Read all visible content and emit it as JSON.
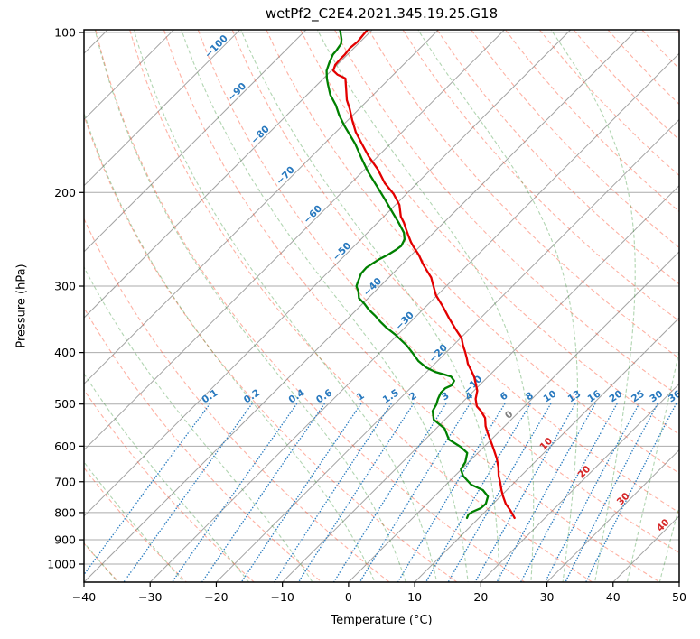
{
  "title": "wetPf2_C2E4.2021.345.19.25.G18",
  "axes": {
    "xlabel": "Temperature (°C)",
    "ylabel": "Pressure (hPa)"
  },
  "chart_data": {
    "type": "line",
    "subtype": "skew-t-log-p-sounding",
    "title": "wetPf2_C2E4.2021.345.19.25.G18",
    "xlabel": "Temperature (°C)",
    "ylabel": "Pressure (hPa)",
    "x_range_c": [
      -40,
      50
    ],
    "x_ticks": [
      -40,
      -30,
      -20,
      -10,
      0,
      10,
      20,
      30,
      40,
      50
    ],
    "y_ticks_hpa": [
      100,
      200,
      300,
      400,
      500,
      600,
      700,
      800,
      900,
      1000
    ],
    "grid_pressures": [
      100,
      200,
      300,
      400,
      500,
      600,
      700,
      800,
      900,
      1000
    ],
    "skew_deg": 45,
    "colors": {
      "temperature": "#e30000",
      "dewpoint": "#008000",
      "isotherm": "#a3a3a3",
      "gridline": "#ababab",
      "dry_adiabat": "rgba(252,70,35,0.42)",
      "moist_adiabat": "rgba(18,128,18,0.33)",
      "mixing_ratio": "#2f7fc1",
      "label_blue": "#2778be",
      "label_zero": "#7f7f7f",
      "label_red": "#d62728",
      "axis": "#000000"
    },
    "series": [
      {
        "name": "temperature",
        "legend": "temperature profile (red)",
        "units": {
          "x": "degC",
          "y": "hPa"
        },
        "points_p_t": [
          [
            99,
            -80.7
          ],
          [
            101,
            -80.6
          ],
          [
            104,
            -80.4
          ],
          [
            107,
            -80.6
          ],
          [
            110,
            -80.4
          ],
          [
            112,
            -80.4
          ],
          [
            115,
            -80.3
          ],
          [
            118,
            -79.7
          ],
          [
            120,
            -78.5
          ],
          [
            122,
            -76.7
          ],
          [
            127,
            -75.2
          ],
          [
            134,
            -73.2
          ],
          [
            139,
            -71.5
          ],
          [
            146,
            -69.4
          ],
          [
            154,
            -67.0
          ],
          [
            162,
            -64.3
          ],
          [
            171,
            -61.4
          ],
          [
            181,
            -58.0
          ],
          [
            192,
            -54.9
          ],
          [
            201,
            -52.0
          ],
          [
            211,
            -49.4
          ],
          [
            222,
            -47.4
          ],
          [
            228,
            -46.0
          ],
          [
            234,
            -44.8
          ],
          [
            240,
            -43.6
          ],
          [
            248,
            -42.0
          ],
          [
            254,
            -40.7
          ],
          [
            262,
            -38.9
          ],
          [
            272,
            -37.0
          ],
          [
            281,
            -35.2
          ],
          [
            289,
            -33.6
          ],
          [
            297,
            -32.4
          ],
          [
            312,
            -30.2
          ],
          [
            328,
            -27.4
          ],
          [
            345,
            -24.7
          ],
          [
            362,
            -22.0
          ],
          [
            376,
            -19.8
          ],
          [
            387,
            -18.6
          ],
          [
            399,
            -17.2
          ],
          [
            410,
            -16.0
          ],
          [
            420,
            -15.0
          ],
          [
            432,
            -13.5
          ],
          [
            445,
            -12.0
          ],
          [
            461,
            -10.5
          ],
          [
            472,
            -9.5
          ],
          [
            489,
            -8.5
          ],
          [
            505,
            -7.2
          ],
          [
            515,
            -5.9
          ],
          [
            531,
            -4.2
          ],
          [
            550,
            -2.9
          ],
          [
            567,
            -1.5
          ],
          [
            595,
            0.8
          ],
          [
            609,
            1.9
          ],
          [
            633,
            3.7
          ],
          [
            658,
            5.3
          ],
          [
            682,
            6.6
          ],
          [
            703,
            7.9
          ],
          [
            726,
            9.2
          ],
          [
            746,
            10.4
          ],
          [
            770,
            11.9
          ],
          [
            791,
            13.5
          ],
          [
            807,
            14.6
          ],
          [
            819,
            15.4
          ]
        ]
      },
      {
        "name": "dewpoint",
        "legend": "dewpoint profile (green)",
        "units": {
          "x": "degC",
          "y": "hPa"
        },
        "points_p_t": [
          [
            99,
            -84.8
          ],
          [
            100,
            -84.4
          ],
          [
            103,
            -83.2
          ],
          [
            105,
            -82.6
          ],
          [
            108,
            -82.3
          ],
          [
            110,
            -82.2
          ],
          [
            114,
            -81.5
          ],
          [
            118,
            -80.7
          ],
          [
            122,
            -79.5
          ],
          [
            125,
            -78.5
          ],
          [
            131,
            -76.5
          ],
          [
            137,
            -74.1
          ],
          [
            143,
            -72.1
          ],
          [
            150,
            -69.6
          ],
          [
            162,
            -65.3
          ],
          [
            172,
            -62.3
          ],
          [
            183,
            -59.1
          ],
          [
            194,
            -55.8
          ],
          [
            205,
            -52.7
          ],
          [
            216,
            -49.8
          ],
          [
            228,
            -46.8
          ],
          [
            238,
            -44.5
          ],
          [
            245,
            -43.4
          ],
          [
            252,
            -42.9
          ],
          [
            256,
            -43.1
          ],
          [
            262,
            -43.6
          ],
          [
            267,
            -44.2
          ],
          [
            272,
            -44.6
          ],
          [
            277,
            -44.9
          ],
          [
            284,
            -44.8
          ],
          [
            292,
            -44.2
          ],
          [
            300,
            -43.6
          ],
          [
            307,
            -42.5
          ],
          [
            316,
            -41.4
          ],
          [
            324,
            -39.7
          ],
          [
            332,
            -38.2
          ],
          [
            341,
            -36.3
          ],
          [
            351,
            -34.4
          ],
          [
            359,
            -32.8
          ],
          [
            370,
            -30.4
          ],
          [
            381,
            -28.3
          ],
          [
            388,
            -27.0
          ],
          [
            402,
            -24.8
          ],
          [
            415,
            -22.9
          ],
          [
            427,
            -20.7
          ],
          [
            435,
            -18.7
          ],
          [
            440,
            -16.9
          ],
          [
            444,
            -15.6
          ],
          [
            452,
            -14.5
          ],
          [
            461,
            -14.2
          ],
          [
            467,
            -14.7
          ],
          [
            476,
            -14.7
          ],
          [
            489,
            -14.2
          ],
          [
            501,
            -13.6
          ],
          [
            515,
            -13.2
          ],
          [
            535,
            -11.7
          ],
          [
            556,
            -8.7
          ],
          [
            583,
            -6.4
          ],
          [
            602,
            -3.5
          ],
          [
            618,
            -1.6
          ],
          [
            643,
            -0.5
          ],
          [
            663,
            -0.1
          ],
          [
            682,
            1.2
          ],
          [
            709,
            3.8
          ],
          [
            726,
            6.4
          ],
          [
            746,
            8.1
          ],
          [
            770,
            8.9
          ],
          [
            785,
            8.8
          ],
          [
            797,
            8.1
          ],
          [
            807,
            7.9
          ],
          [
            819,
            8.2
          ]
        ]
      }
    ],
    "isotherms": {
      "min_c": -120,
      "max_c": 50,
      "step_c": 10,
      "labels_c": [
        -100,
        -90,
        -80,
        -70,
        -60,
        -50,
        -40,
        -30,
        -20,
        -10,
        0,
        10,
        20,
        30,
        40
      ],
      "label_anchor_theta_k": 327.15
    },
    "dry_adiabats": {
      "min_c": -40,
      "max_c": 260,
      "step_c": 10
    },
    "moist_adiabats": {
      "cold_starts_c": [
        -40,
        -30,
        -20,
        -10
      ],
      "warm_start_c": 0,
      "warm_end_c": 195,
      "warm_step_c": 5
    },
    "mixing_ratios": {
      "values_g_kg": [
        0.1,
        0.2,
        0.4,
        0.6,
        1,
        1.5,
        2,
        3,
        4,
        6,
        8,
        10,
        13,
        16,
        20,
        25,
        30,
        36
      ],
      "labels": [
        "0.1",
        "0.2",
        "0.4",
        "0.6",
        "1",
        "1.5",
        "2",
        "3",
        "4",
        "6",
        "8",
        "10",
        "13",
        "16",
        "20",
        "25",
        "30",
        "36"
      ],
      "label_pressure_hpa": 487,
      "top_pressure_hpa": 500
    }
  }
}
